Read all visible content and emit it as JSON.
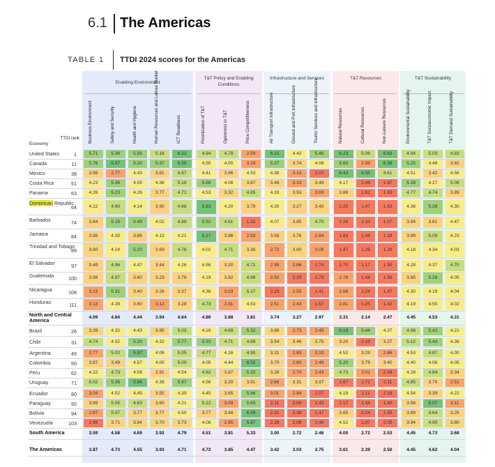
{
  "header": {
    "section_number": "6.1",
    "section_title": "The Americas",
    "table_label": "TABLE 1",
    "table_title": "TTDI 2024 scores for the Americas"
  },
  "col_heads": {
    "economy": "Economy",
    "rank": "TTDI rank"
  },
  "groups": [
    {
      "title": "Enabling Environment",
      "bg": "#e3ebfa",
      "columns": [
        "Business Environment",
        "Safety and Security",
        "Health and Hygiene",
        "Human Resources and Labour Market",
        "ICT Readiness"
      ]
    },
    {
      "title": "T&T Policy and Enabling Conditions",
      "bg": "#f1e7f7",
      "columns": [
        "Prioritization of T&T",
        "Openness to T&T",
        "Price Competitiveness"
      ]
    },
    {
      "title": "Infrastructure and Services",
      "bg": "#ecf3fb",
      "columns": [
        "Air Transport Infrastructure",
        "Ground and Port Infrastructure",
        "Tourist Services and Infrastructure"
      ]
    },
    {
      "title": "T&T Resources",
      "bg": "#fbe9e9",
      "columns": [
        "Natural Resources",
        "Cultural Resources",
        "Non-Leisure Resources"
      ]
    },
    {
      "title": "T&T Sustainability",
      "bg": "#e4f5ee",
      "columns": [
        "Environmental Sustainability",
        "T&T Socioeconomic Impact",
        "T&T Demand Sustainability"
      ]
    }
  ],
  "colors": {
    "red": "#f4795e",
    "yellow": "#f8ec88",
    "green": "#76c276",
    "highlight": "#e4e936"
  },
  "rows": [
    {
      "economy": "United States",
      "rank": "1",
      "scores": [
        "5.71",
        "5.36",
        "5.56",
        "5.16",
        "6.32",
        "4.94",
        "4.78",
        "2.59",
        "6.15",
        "4.42",
        "5.46",
        "6.23",
        "5.06",
        "6.63",
        "4.94",
        "5.03",
        "4.83"
      ]
    },
    {
      "economy": "Canada",
      "rank": "11",
      "scores": [
        "5.76",
        "5.97",
        "5.20",
        "5.37",
        "6.05",
        "4.55",
        "4.00",
        "3.19",
        "5.37",
        "3.74",
        "4.08",
        "5.60",
        "2.89",
        "6.38",
        "5.25",
        "4.48",
        "3.82"
      ]
    },
    {
      "economy": "Mexico",
      "rank": "38",
      "scores": [
        "3.98",
        "2.77",
        "4.43",
        "3.81",
        "4.87",
        "4.41",
        "3.96",
        "4.53",
        "4.38",
        "3.13",
        "2.22",
        "6.43",
        "6.35",
        "4.61",
        "4.51",
        "3.42",
        "4.56"
      ]
    },
    {
      "economy": "Costa Rica",
      "rank": "51",
      "scores": [
        "4.23",
        "5.36",
        "4.59",
        "4.36",
        "5.18",
        "5.68",
        "4.08",
        "3.67",
        "3.48",
        "3.13",
        "3.48",
        "4.17",
        "1.46",
        "1.87",
        "5.28",
        "4.27",
        "5.06"
      ]
    },
    {
      "economy": "Panama",
      "rank": "63",
      "scores": [
        "4.26",
        "5.23",
        "4.26",
        "3.77",
        "4.71",
        "4.53",
        "3.32",
        "4.85",
        "4.33",
        "3.53",
        "3.00",
        "3.88",
        "1.62",
        "1.63",
        "4.77",
        "4.74",
        "3.89"
      ]
    },
    {
      "economy": "Dominican Republic",
      "rank": "64",
      "highlight": true,
      "scores": [
        "4.22",
        "4.90",
        "4.14",
        "3.90",
        "4.68",
        "5.83",
        "4.20",
        "3.79",
        "4.30",
        "3.27",
        "3.40",
        "2.25",
        "1.47",
        "1.63",
        "4.38",
        "5.38",
        "4.30"
      ]
    },
    {
      "economy": "Barbados",
      "rank": "74",
      "scores": [
        "3.64",
        "5.29",
        "5.49",
        "4.02",
        "4.88",
        "5.52",
        "4.61",
        "1.32",
        "4.07",
        "3.85",
        "4.70",
        "1.26",
        "1.10",
        "1.07",
        "3.94",
        "3.81",
        "4.47"
      ]
    },
    {
      "economy": "Jamaica",
      "rank": "84",
      "scores": [
        "3.86",
        "4.35",
        "3.86",
        "4.13",
        "4.21",
        "6.17",
        "3.86",
        "2.83",
        "3.58",
        "3.76",
        "2.64",
        "1.83",
        "1.48",
        "1.18",
        "3.98",
        "5.09",
        "4.23"
      ]
    },
    {
      "economy": "Trinidad and Tobago",
      "rank": "89",
      "scores": [
        "3.80",
        "4.24",
        "5.20",
        "3.69",
        "4.76",
        "4.02",
        "4.71",
        "3.36",
        "2.72",
        "3.60",
        "3.09",
        "1.47",
        "1.28",
        "1.29",
        "4.18",
        "4.34",
        "4.03"
      ]
    },
    {
      "economy": "El Salvador",
      "rank": "97",
      "scores": [
        "3.49",
        "4.96",
        "4.47",
        "3.44",
        "4.26",
        "4.56",
        "3.20",
        "4.72",
        "2.95",
        "2.86",
        "1.74",
        "1.70",
        "1.17",
        "1.50",
        "4.28",
        "4.37",
        "4.70"
      ]
    },
    {
      "economy": "Guatemala",
      "rank": "100",
      "scores": [
        "3.98",
        "4.97",
        "3.60",
        "3.23",
        "3.78",
        "4.19",
        "3.82",
        "4.96",
        "2.50",
        "2.29",
        "1.79",
        "2.78",
        "1.44",
        "1.56",
        "3.85",
        "5.26",
        "4.05"
      ]
    },
    {
      "economy": "Nicaragua",
      "rank": "108",
      "scores": [
        "3.13",
        "5.31",
        "3.40",
        "3.26",
        "3.37",
        "4.36",
        "3.03",
        "5.17",
        "2.23",
        "2.55",
        "1.41",
        "2.68",
        "1.24",
        "1.37",
        "4.30",
        "4.18",
        "4.04"
      ]
    },
    {
      "economy": "Honduras",
      "rank": "111",
      "scores": [
        "3.13",
        "4.28",
        "3.60",
        "3.12",
        "3.28",
        "4.73",
        "2.81",
        "4.53",
        "2.51",
        "2.43",
        "1.57",
        "2.81",
        "1.25",
        "1.42",
        "4.19",
        "4.50",
        "4.02"
      ]
    },
    {
      "economy": "North and Central America",
      "rank": "",
      "bold": true,
      "scores": [
        "4.09",
        "4.84",
        "4.44",
        "3.94",
        "4.64",
        "4.86",
        "3.88",
        "3.81",
        "3.74",
        "3.27",
        "2.97",
        "3.31",
        "2.14",
        "2.47",
        "4.45",
        "4.53",
        "4.31"
      ]
    },
    {
      "economy": "Brazil",
      "rank": "26",
      "scores": [
        "3.39",
        "4.32",
        "4.43",
        "3.95",
        "5.03",
        "4.16",
        "4.69",
        "5.32",
        "3.88",
        "2.73",
        "2.45",
        "6.19",
        "5.44",
        "4.37",
        "4.98",
        "5.42",
        "4.21"
      ]
    },
    {
      "economy": "Chile",
      "rank": "31",
      "scores": [
        "4.74",
        "4.52",
        "5.20",
        "4.32",
        "5.77",
        "5.33",
        "4.71",
        "4.69",
        "3.54",
        "3.46",
        "3.75",
        "3.20",
        "2.19",
        "3.27",
        "5.12",
        "5.43",
        "4.36"
      ]
    },
    {
      "economy": "Argentina",
      "rank": "49",
      "scores": [
        "2.77",
        "5.02",
        "5.97",
        "4.06",
        "5.05",
        "4.77",
        "4.16",
        "4.90",
        "3.21",
        "2.83",
        "3.10",
        "4.52",
        "3.29",
        "2.66",
        "4.53",
        "4.87",
        "4.00"
      ]
    },
    {
      "economy": "Colombia",
      "rank": "50",
      "scores": [
        "3.97",
        "3.49",
        "4.57",
        "4.00",
        "5.00",
        "4.05",
        "4.44",
        "6.02",
        "3.70",
        "2.80",
        "2.46",
        "5.20",
        "3.79",
        "3.40",
        "4.40",
        "4.08",
        "4.05"
      ]
    },
    {
      "economy": "Peru",
      "rank": "62",
      "scores": [
        "4.22",
        "4.73",
        "4.08",
        "3.91",
        "4.54",
        "4.82",
        "3.87",
        "5.22",
        "3.28",
        "2.70",
        "2.43",
        "4.73",
        "3.01",
        "2.34",
        "4.28",
        "4.84",
        "3.34"
      ]
    },
    {
      "economy": "Uruguay",
      "rank": "71",
      "scores": [
        "5.02",
        "5.36",
        "5.86",
        "4.39",
        "5.67",
        "4.56",
        "3.20",
        "3.91",
        "2.66",
        "3.31",
        "3.97",
        "1.67",
        "1.71",
        "2.11",
        "4.85",
        "3.70",
        "2.51"
      ]
    },
    {
      "economy": "Ecuador",
      "rank": "80",
      "scores": [
        "3.04",
        "4.52",
        "4.45",
        "3.55",
        "4.39",
        "4.45",
        "3.65",
        "5.66",
        "3.01",
        "2.84",
        "2.07",
        "4.19",
        "2.11",
        "2.18",
        "4.54",
        "3.39",
        "4.22"
      ]
    },
    {
      "economy": "Paraguay",
      "rank": "92",
      "scores": [
        "3.89",
        "5.05",
        "4.63",
        "3.60",
        "4.21",
        "5.12",
        "3.09",
        "5.63",
        "2.11",
        "2.04",
        "1.43",
        "2.17",
        "1.44",
        "1.40",
        "3.98",
        "6.07",
        "3.11"
      ]
    },
    {
      "economy": "Bolivia",
      "rank": "94",
      "scores": [
        "2.87",
        "5.07",
        "3.77",
        "3.77",
        "4.50",
        "3.77",
        "3.48",
        "6.09",
        "2.31",
        "2.38",
        "1.47",
        "3.65",
        "2.24",
        "1.55",
        "3.89",
        "4.64",
        "3.25"
      ]
    },
    {
      "economy": "Venezuela",
      "rank": "103",
      "scores": [
        "1.98",
        "3.71",
        "3.94",
        "3.70",
        "3.73",
        "4.08",
        "2.85",
        "5.87",
        "2.26",
        "2.08",
        "1.46",
        "4.52",
        "1.97",
        "2.05",
        "3.94",
        "4.90",
        "3.80"
      ]
    },
    {
      "economy": "South America",
      "rank": "",
      "bold": true,
      "scores": [
        "3.59",
        "4.58",
        "4.69",
        "3.92",
        "4.79",
        "4.51",
        "3.81",
        "5.33",
        "3.00",
        "2.72",
        "2.46",
        "4.00",
        "2.72",
        "2.53",
        "4.45",
        "4.73",
        "3.68"
      ]
    },
    {
      "economy": "The Americas",
      "rank": "",
      "bold": true,
      "scores": [
        "3.87",
        "4.73",
        "4.55",
        "3.93",
        "4.71",
        "4.72",
        "3.85",
        "4.47",
        "3.42",
        "3.03",
        "2.75",
        "3.61",
        "2.39",
        "2.50",
        "4.45",
        "4.62",
        "4.04"
      ]
    }
  ]
}
